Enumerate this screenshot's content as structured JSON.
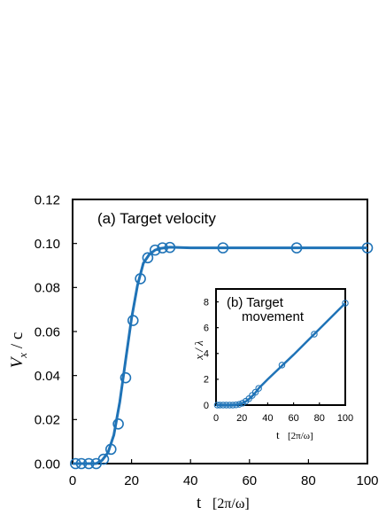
{
  "chart_data": [
    {
      "type": "line",
      "title": "(a) Target velocity",
      "xlabel_main": "t",
      "xlabel_unit": "[2π/ω]",
      "ylabel": "V",
      "ylabel_subscript": "x",
      "ylabel_tail": " / c",
      "xlim": [
        0,
        100
      ],
      "ylim": [
        0,
        0.12
      ],
      "xticks": [
        0,
        20,
        40,
        60,
        80,
        100
      ],
      "yticks": [
        0,
        0.02,
        0.04,
        0.06,
        0.08,
        0.1,
        0.12
      ],
      "ytick_labels": [
        "0.00",
        "0.02",
        "0.04",
        "0.06",
        "0.08",
        "0.10",
        "0.12"
      ],
      "grid": false,
      "line_color": "#1f73b7",
      "markers": {
        "x": [
          1,
          3,
          5.5,
          8,
          10.5,
          13,
          15.5,
          18,
          20.5,
          23,
          25.5,
          28,
          30.5,
          33,
          51,
          76,
          100
        ],
        "y": [
          0,
          0,
          0,
          0,
          0.002,
          0.0065,
          0.018,
          0.039,
          0.065,
          0.084,
          0.0935,
          0.097,
          0.098,
          0.0982,
          0.098,
          0.098,
          0.098
        ]
      },
      "curve": {
        "x": [
          0,
          8,
          10,
          12,
          14,
          16,
          18,
          20,
          22,
          24,
          26,
          28,
          30,
          33,
          40,
          60,
          100
        ],
        "y": [
          0,
          0,
          0.0015,
          0.005,
          0.013,
          0.028,
          0.047,
          0.066,
          0.081,
          0.091,
          0.095,
          0.097,
          0.0978,
          0.0983,
          0.098,
          0.098,
          0.098
        ]
      }
    },
    {
      "type": "line",
      "title_line1": "(b) Target",
      "title_line2": "movement",
      "xlabel_main": "t",
      "xlabel_unit": "[2π/ω]",
      "ylabel": "x / λ",
      "xlim": [
        0,
        100
      ],
      "ylim": [
        0,
        9
      ],
      "xticks": [
        0,
        20,
        40,
        60,
        80,
        100
      ],
      "yticks": [
        0,
        2,
        4,
        6,
        8
      ],
      "grid": false,
      "line_color": "#1f73b7",
      "markers": {
        "x": [
          1,
          3,
          5.5,
          8,
          10.5,
          13,
          15.5,
          18,
          20.5,
          23,
          25.5,
          28,
          30.5,
          33,
          51,
          76,
          100
        ],
        "y": [
          0,
          0,
          0,
          0,
          0,
          0,
          0.02,
          0.06,
          0.15,
          0.3,
          0.5,
          0.75,
          1.0,
          1.3,
          3.1,
          5.5,
          7.9
        ]
      },
      "curve": {
        "x": [
          0,
          12,
          15,
          18,
          21,
          24,
          27,
          30,
          33,
          40,
          60,
          80,
          100
        ],
        "y": [
          0,
          0,
          0.02,
          0.06,
          0.17,
          0.34,
          0.6,
          0.9,
          1.3,
          2.0,
          3.9,
          5.9,
          7.9
        ]
      }
    }
  ]
}
